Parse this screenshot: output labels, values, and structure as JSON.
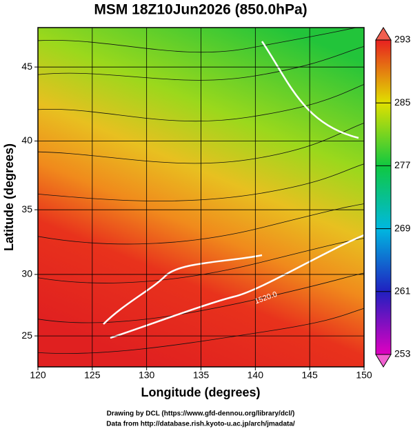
{
  "chart_data": {
    "type": "map",
    "title": "MSM 18Z10Jun2026 (850.0hPa)",
    "xlabel": "Longitude (degrees)",
    "ylabel": "Latitude  (degrees)",
    "xlim": [
      120,
      150
    ],
    "ylim": [
      22.4,
      47.5
    ],
    "projection": "mercator",
    "xticks": [
      120,
      125,
      130,
      135,
      140,
      145,
      150
    ],
    "yticks": [
      25,
      30,
      35,
      40,
      45
    ],
    "grid": true,
    "colorbar": {
      "clim": [
        253,
        293
      ],
      "ticks": [
        253,
        261,
        269,
        277,
        285,
        293
      ]
    },
    "annotations": [
      "1520.0"
    ],
    "credits": [
      "Drawing by DCL (https://www.gfd-dennou.org/library/dcl/)",
      "Data from http://database.rish.kyoto-u.ac.jp/arch/jmadata/"
    ]
  }
}
